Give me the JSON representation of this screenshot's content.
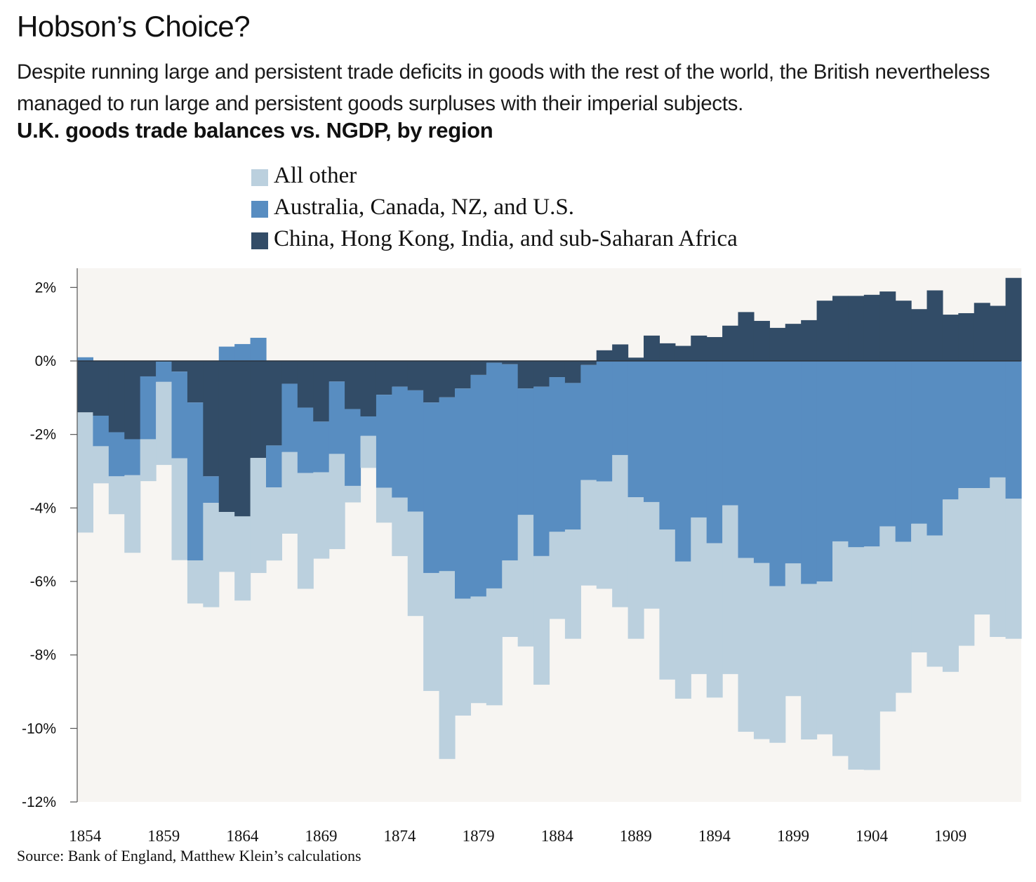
{
  "header": {
    "title": "Hobson’s Choice?",
    "subtitle": "Despite running large and persistent trade deficits in goods with the rest of the world, the British nevertheless managed to run large and persistent goods surpluses with their imperial subjects.",
    "chart_heading": "U.K. goods trade balances vs. NGDP, by region"
  },
  "source": "Source: Bank of England, Matthew Klein’s calculations",
  "colors": {
    "all_other": "#bbd0de",
    "aus_can_nz_us": "#588dc1",
    "china_hk_india_ssa": "#324c67",
    "plot_background": "#f7f5f2",
    "axis": "#555555",
    "zero_line": "#2b3540"
  },
  "chart_data": {
    "type": "bar",
    "stacked": true,
    "title": "U.K. goods trade balances vs. NGDP, by region",
    "xlabel": "",
    "ylabel": "",
    "ylim": [
      -12,
      2.5
    ],
    "yticks": [
      2,
      0,
      -2,
      -4,
      -6,
      -8,
      -10,
      -12
    ],
    "ytick_labels": [
      "2%",
      "0%",
      "-2%",
      "-4%",
      "-6%",
      "-8%",
      "-10%",
      "-12%"
    ],
    "xtick_labels": [
      "1854",
      "1859",
      "1864",
      "1869",
      "1874",
      "1879",
      "1884",
      "1889",
      "1894",
      "1899",
      "1904",
      "1909"
    ],
    "grid": false,
    "legend_position": "top",
    "units": "% of NGDP",
    "categories": [
      1854,
      1855,
      1856,
      1857,
      1858,
      1859,
      1860,
      1861,
      1862,
      1863,
      1864,
      1865,
      1866,
      1867,
      1868,
      1869,
      1870,
      1871,
      1872,
      1873,
      1874,
      1875,
      1876,
      1877,
      1878,
      1879,
      1880,
      1881,
      1882,
      1883,
      1884,
      1885,
      1886,
      1887,
      1888,
      1889,
      1890,
      1891,
      1892,
      1893,
      1894,
      1895,
      1896,
      1897,
      1898,
      1899,
      1900,
      1901,
      1902,
      1903,
      1904,
      1905,
      1906,
      1907,
      1908,
      1909,
      1910,
      1911,
      1912,
      1913
    ],
    "series": [
      {
        "key": "china_hk_india_ssa",
        "name": "China, Hong Kong, India, and sub-Saharan Africa",
        "values": [
          -1.4,
          -1.49,
          -1.94,
          -2.13,
          -0.42,
          -0.02,
          -0.29,
          -1.13,
          -3.14,
          -4.11,
          -4.23,
          -2.64,
          -2.3,
          -0.62,
          -1.27,
          -1.65,
          -0.56,
          -1.31,
          -1.51,
          -0.92,
          -0.7,
          -0.8,
          -1.13,
          -0.99,
          -0.75,
          -0.38,
          -0.05,
          -0.09,
          -0.75,
          -0.7,
          -0.44,
          -0.6,
          -0.11,
          0.29,
          0.45,
          0.09,
          0.69,
          0.48,
          0.41,
          0.69,
          0.65,
          0.96,
          1.33,
          1.09,
          0.9,
          1.01,
          1.11,
          1.64,
          1.77,
          1.77,
          1.8,
          1.89,
          1.64,
          1.41,
          1.92,
          1.26,
          1.3,
          1.58,
          1.5,
          2.26
        ]
      },
      {
        "key": "aus_can_nz_us",
        "name": "Australia, Canada, NZ, and U.S.",
        "values": [
          0.1,
          -0.83,
          -1.2,
          -0.98,
          -1.71,
          -0.55,
          -2.36,
          -4.3,
          -0.72,
          0.39,
          0.46,
          0.63,
          -1.14,
          -1.86,
          -1.78,
          -1.38,
          -1.97,
          -2.09,
          -0.53,
          -2.53,
          -3.02,
          -3.3,
          -4.64,
          -4.73,
          -5.72,
          -6.03,
          -6.14,
          -5.34,
          -3.44,
          -4.61,
          -4.21,
          -3.99,
          -3.13,
          -3.28,
          -2.56,
          -3.71,
          -3.84,
          -4.59,
          -5.46,
          -4.26,
          -4.96,
          -3.93,
          -5.36,
          -5.5,
          -6.13,
          -5.51,
          -6.07,
          -6.0,
          -4.91,
          -5.07,
          -5.05,
          -4.5,
          -4.92,
          -4.43,
          -4.75,
          -3.77,
          -3.46,
          -3.46,
          -3.17,
          -3.75
        ]
      },
      {
        "key": "all_other",
        "name": "All other",
        "values": [
          -3.27,
          -1.01,
          -1.03,
          -2.11,
          -1.14,
          -2.26,
          -2.77,
          -1.17,
          -2.84,
          -1.63,
          -2.29,
          -3.13,
          -1.99,
          -2.22,
          -3.15,
          -2.35,
          -2.59,
          -0.45,
          -0.87,
          -0.95,
          -1.59,
          -2.84,
          -3.21,
          -5.11,
          -3.18,
          -2.9,
          -3.18,
          -2.08,
          -3.58,
          -3.5,
          -2.37,
          -2.97,
          -2.87,
          -2.92,
          -4.14,
          -3.85,
          -2.9,
          -4.08,
          -3.73,
          -4.26,
          -4.2,
          -4.59,
          -4.73,
          -4.79,
          -4.26,
          -3.61,
          -4.23,
          -4.16,
          -5.84,
          -6.05,
          -6.08,
          -5.04,
          -4.11,
          -3.5,
          -3.57,
          -4.69,
          -4.29,
          -3.44,
          -4.34,
          -3.81
        ]
      }
    ],
    "legend": [
      {
        "key": "all_other",
        "label": "All other"
      },
      {
        "key": "aus_can_nz_us",
        "label": "Australia, Canada, NZ, and U.S."
      },
      {
        "key": "china_hk_india_ssa",
        "label": "China, Hong Kong, India, and sub-Saharan Africa"
      }
    ]
  }
}
